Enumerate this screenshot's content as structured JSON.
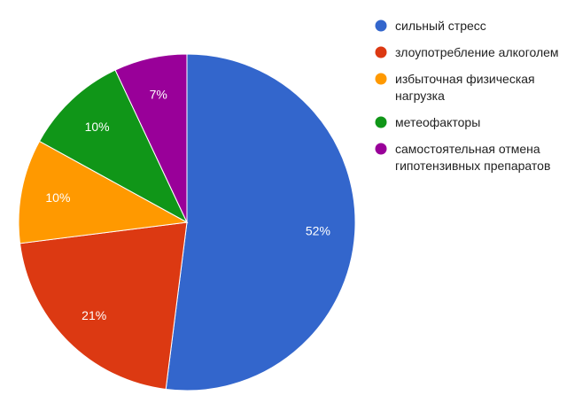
{
  "chart_data": {
    "type": "pie",
    "title": "",
    "legend_position": "right",
    "slices": [
      {
        "label": [
          "сильный стресс"
        ],
        "value": 52,
        "display": "52%",
        "color": "#3366cc"
      },
      {
        "label": [
          "злоупотребление алкоголем"
        ],
        "value": 21,
        "display": "21%",
        "color": "#dc3912"
      },
      {
        "label": [
          "избыточная физическая",
          "нагрузка"
        ],
        "value": 10,
        "display": "10%",
        "color": "#ff9900"
      },
      {
        "label": [
          "метеофакторы"
        ],
        "value": 10,
        "display": "10%",
        "color": "#109618"
      },
      {
        "label": [
          "самостоятельная отмена",
          "гипотензивных препаратов"
        ],
        "value": 7,
        "display": "7%",
        "color": "#990099"
      }
    ]
  }
}
